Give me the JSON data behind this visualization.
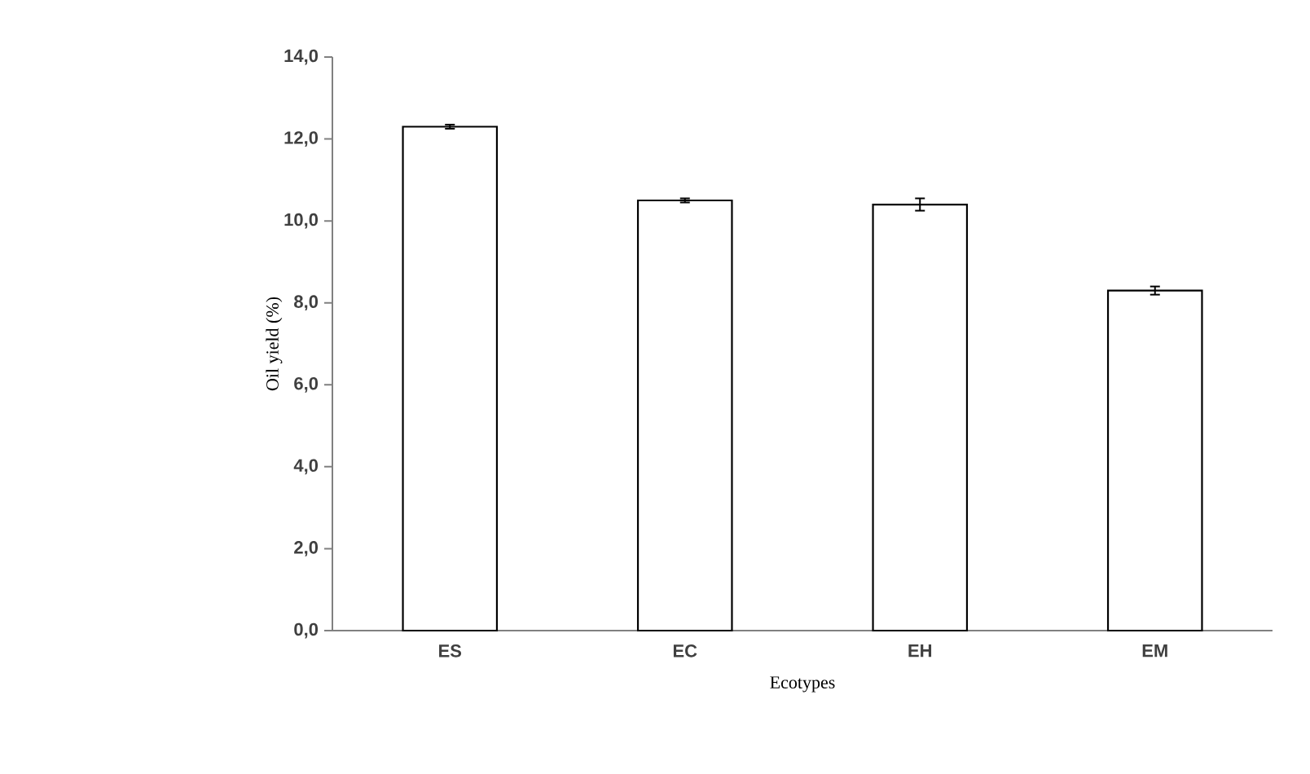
{
  "chart_data": {
    "type": "bar",
    "xlabel": "Ecotypes",
    "ylabel": "Oil yield (%)",
    "categories": [
      "ES",
      "EC",
      "EH",
      "EM"
    ],
    "values": [
      12.3,
      10.5,
      10.4,
      8.3
    ],
    "errors": [
      0.05,
      0.05,
      0.15,
      0.1
    ],
    "color": "#000000",
    "ylim": [
      0,
      14
    ],
    "yticks": [
      {
        "value": 0,
        "label": "0,0"
      },
      {
        "value": 2,
        "label": "2,0"
      },
      {
        "value": 4,
        "label": "4,0"
      },
      {
        "value": 6,
        "label": "6,0"
      },
      {
        "value": 8,
        "label": "8,0"
      },
      {
        "value": 10,
        "label": "10,0"
      },
      {
        "value": 12,
        "label": "12,0"
      },
      {
        "value": 14,
        "label": "14,0"
      }
    ],
    "grid": false
  }
}
